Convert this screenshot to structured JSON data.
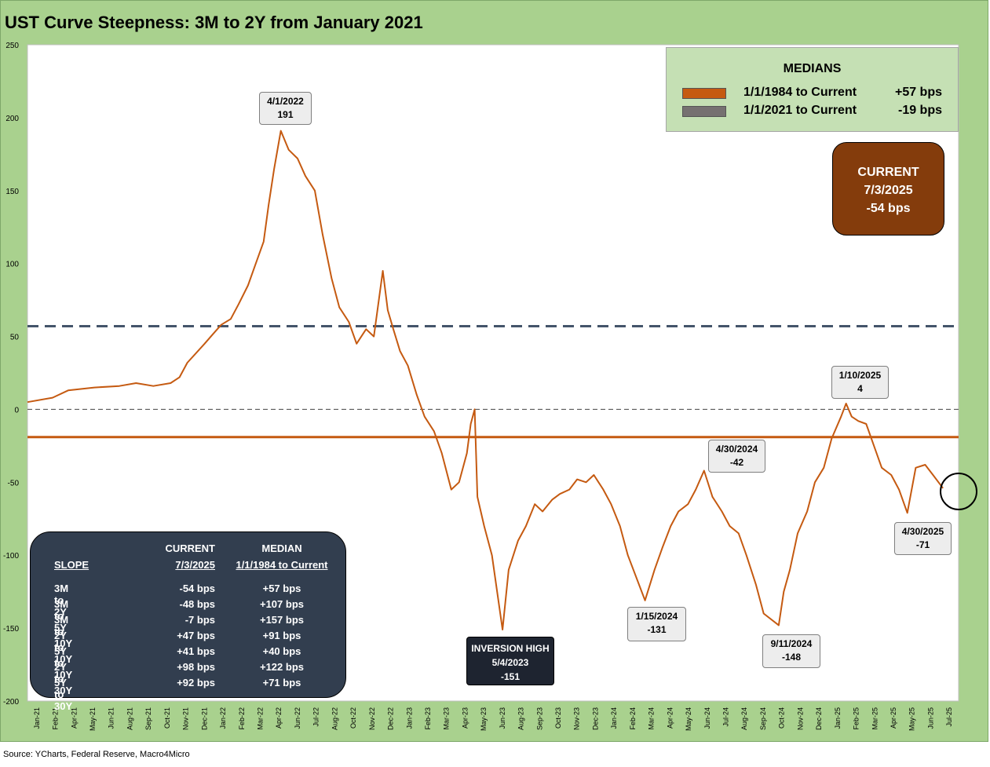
{
  "title": "UST Curve Steepness: 3M to 2Y from January 2021",
  "source": "Source: YCharts, Federal Reserve, Macro4Micro",
  "medians_box": {
    "header": "MEDIANS",
    "rows": [
      {
        "label": "1/1/1984 to Current",
        "value": "+57 bps",
        "color": "#c55a11"
      },
      {
        "label": "1/1/2021 to Current",
        "value": "-19 bps",
        "color": "#767171"
      }
    ]
  },
  "current_box": {
    "line1": "CURRENT",
    "line2": "7/3/2025",
    "line3": "-54 bps"
  },
  "slope_table": {
    "headers": {
      "col1": "SLOPE",
      "col2_top": "CURRENT",
      "col2": "7/3/2025",
      "col3_top": "MEDIAN",
      "col3": "1/1/1984 to Current"
    },
    "rows": [
      {
        "slope": "3M to 2Y",
        "current": "-54 bps",
        "median": "+57 bps"
      },
      {
        "slope": "3M to 5Y",
        "current": "-48 bps",
        "median": "+107 bps"
      },
      {
        "slope": "3M to 10Y",
        "current": "-7 bps",
        "median": "+157 bps"
      },
      {
        "slope": "2Y to 10Y",
        "current": "+47 bps",
        "median": "+91 bps"
      },
      {
        "slope": "5Y to 10Y",
        "current": "+41 bps",
        "median": "+40 bps"
      },
      {
        "slope": "2Y to 30Y",
        "current": "+98 bps",
        "median": "+122 bps"
      },
      {
        "slope": "5Y to 30Y",
        "current": "+92 bps",
        "median": "+71 bps"
      }
    ]
  },
  "callouts": {
    "peak": {
      "date": "4/1/2022",
      "value": "191"
    },
    "inversion": {
      "title": "INVERSION HIGH",
      "date": "5/4/2023",
      "value": "-151"
    },
    "jan2024": {
      "date": "1/15/2024",
      "value": "-131"
    },
    "apr2024": {
      "date": "4/30/2024",
      "value": "-42"
    },
    "sep2024": {
      "date": "9/11/2024",
      "value": "-148"
    },
    "jan2025": {
      "date": "1/10/2025",
      "value": "4"
    },
    "apr2025": {
      "date": "4/30/2025",
      "value": "-71"
    }
  },
  "chart_data": {
    "type": "line",
    "ylim": [
      -200,
      250
    ],
    "yticks": [
      -200,
      -150,
      -100,
      -50,
      0,
      50,
      100,
      150,
      200,
      250
    ],
    "xlabels": [
      "Jan-21",
      "Feb-21",
      "Apr-21",
      "May-21",
      "Jun-21",
      "Aug-21",
      "Sep-21",
      "Oct-21",
      "Nov-21",
      "Dec-21",
      "Jan-22",
      "Feb-22",
      "Mar-22",
      "Apr-22",
      "Jun-22",
      "Jul-22",
      "Aug-22",
      "Oct-22",
      "Nov-22",
      "Dec-22",
      "Jan-23",
      "Feb-23",
      "Mar-23",
      "Apr-23",
      "May-23",
      "Jun-23",
      "Aug-23",
      "Sep-23",
      "Oct-23",
      "Nov-23",
      "Dec-23",
      "Jan-24",
      "Feb-24",
      "Mar-24",
      "Apr-24",
      "May-24",
      "Jun-24",
      "Jul-24",
      "Aug-24",
      "Sep-24",
      "Oct-24",
      "Nov-24",
      "Dec-24",
      "Jan-25",
      "Feb-25",
      "Mar-25",
      "Apr-25",
      "May-25",
      "Jun-25",
      "Jul-25"
    ],
    "series": [
      {
        "color": "#c55a11",
        "points": [
          [
            "2021-01-01",
            5
          ],
          [
            "2021-02-15",
            8
          ],
          [
            "2021-03-15",
            13
          ],
          [
            "2021-05-01",
            15
          ],
          [
            "2021-06-15",
            16
          ],
          [
            "2021-07-15",
            18
          ],
          [
            "2021-08-15",
            16
          ],
          [
            "2021-09-15",
            18
          ],
          [
            "2021-10-01",
            22
          ],
          [
            "2021-10-15",
            32
          ],
          [
            "2021-11-15",
            45
          ],
          [
            "2021-12-01",
            52
          ],
          [
            "2021-12-15",
            58
          ],
          [
            "2022-01-01",
            62
          ],
          [
            "2022-01-15",
            72
          ],
          [
            "2022-02-01",
            85
          ],
          [
            "2022-02-15",
            100
          ],
          [
            "2022-03-01",
            115
          ],
          [
            "2022-03-10",
            140
          ],
          [
            "2022-03-20",
            165
          ],
          [
            "2022-04-01",
            191
          ],
          [
            "2022-04-15",
            178
          ],
          [
            "2022-05-01",
            172
          ],
          [
            "2022-05-15",
            160
          ],
          [
            "2022-06-01",
            150
          ],
          [
            "2022-06-15",
            120
          ],
          [
            "2022-07-01",
            90
          ],
          [
            "2022-07-15",
            70
          ],
          [
            "2022-08-01",
            60
          ],
          [
            "2022-08-15",
            45
          ],
          [
            "2022-09-01",
            55
          ],
          [
            "2022-09-15",
            50
          ],
          [
            "2022-10-01",
            95
          ],
          [
            "2022-10-10",
            68
          ],
          [
            "2022-10-20",
            55
          ],
          [
            "2022-11-01",
            40
          ],
          [
            "2022-11-15",
            30
          ],
          [
            "2022-12-01",
            10
          ],
          [
            "2022-12-15",
            -5
          ],
          [
            "2023-01-01",
            -15
          ],
          [
            "2023-01-15",
            -30
          ],
          [
            "2023-02-01",
            -55
          ],
          [
            "2023-02-15",
            -50
          ],
          [
            "2023-03-01",
            -30
          ],
          [
            "2023-03-08",
            -10
          ],
          [
            "2023-03-15",
            0
          ],
          [
            "2023-03-20",
            -60
          ],
          [
            "2023-04-01",
            -80
          ],
          [
            "2023-04-15",
            -100
          ],
          [
            "2023-05-04",
            -151
          ],
          [
            "2023-05-15",
            -110
          ],
          [
            "2023-06-01",
            -90
          ],
          [
            "2023-06-15",
            -80
          ],
          [
            "2023-07-01",
            -65
          ],
          [
            "2023-07-15",
            -70
          ],
          [
            "2023-08-01",
            -62
          ],
          [
            "2023-08-15",
            -58
          ],
          [
            "2023-09-01",
            -55
          ],
          [
            "2023-09-15",
            -48
          ],
          [
            "2023-10-01",
            -50
          ],
          [
            "2023-10-15",
            -45
          ],
          [
            "2023-11-01",
            -55
          ],
          [
            "2023-11-15",
            -65
          ],
          [
            "2023-12-01",
            -80
          ],
          [
            "2023-12-15",
            -100
          ],
          [
            "2024-01-15",
            -131
          ],
          [
            "2024-02-01",
            -110
          ],
          [
            "2024-02-15",
            -95
          ],
          [
            "2024-03-01",
            -80
          ],
          [
            "2024-03-15",
            -70
          ],
          [
            "2024-04-01",
            -65
          ],
          [
            "2024-04-15",
            -55
          ],
          [
            "2024-04-30",
            -42
          ],
          [
            "2024-05-15",
            -60
          ],
          [
            "2024-06-01",
            -70
          ],
          [
            "2024-06-15",
            -80
          ],
          [
            "2024-07-01",
            -85
          ],
          [
            "2024-07-15",
            -100
          ],
          [
            "2024-08-01",
            -120
          ],
          [
            "2024-08-15",
            -140
          ],
          [
            "2024-09-11",
            -148
          ],
          [
            "2024-09-20",
            -125
          ],
          [
            "2024-10-01",
            -110
          ],
          [
            "2024-10-15",
            -85
          ],
          [
            "2024-11-01",
            -70
          ],
          [
            "2024-11-15",
            -50
          ],
          [
            "2024-12-01",
            -40
          ],
          [
            "2024-12-15",
            -20
          ],
          [
            "2025-01-01",
            -5
          ],
          [
            "2025-01-10",
            4
          ],
          [
            "2025-01-20",
            -5
          ],
          [
            "2025-02-01",
            -8
          ],
          [
            "2025-02-15",
            -10
          ],
          [
            "2025-03-01",
            -25
          ],
          [
            "2025-03-15",
            -40
          ],
          [
            "2025-04-01",
            -45
          ],
          [
            "2025-04-15",
            -55
          ],
          [
            "2025-04-30",
            -71
          ],
          [
            "2025-05-15",
            -40
          ],
          [
            "2025-06-01",
            -38
          ],
          [
            "2025-06-15",
            -45
          ],
          [
            "2025-07-03",
            -54
          ]
        ]
      }
    ],
    "reference_lines": [
      {
        "value": 57,
        "style": "dashed",
        "color": "#44546a"
      },
      {
        "value": -19,
        "style": "solid",
        "color": "#c55a11"
      },
      {
        "value": 0,
        "style": "dashed",
        "color": "#595959"
      }
    ],
    "x_range": [
      "2021-01-01",
      "2025-07-31"
    ]
  }
}
